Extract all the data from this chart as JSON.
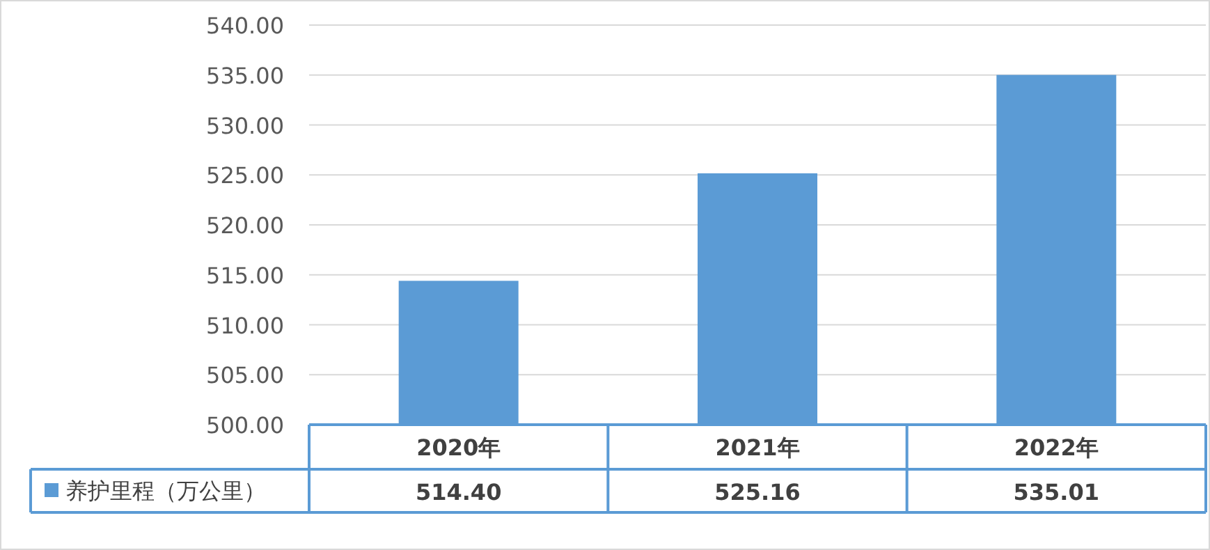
{
  "chart_data": {
    "type": "bar",
    "categories": [
      "2020年",
      "2021年",
      "2022年"
    ],
    "series": [
      {
        "name": "养护里程（万公里）",
        "color": "#5b9bd5",
        "values": [
          514.4,
          525.16,
          535.01
        ],
        "value_labels": [
          "514.40",
          "525.16",
          "535.01"
        ]
      }
    ],
    "ylim": [
      500,
      540
    ],
    "yticks": [
      {
        "value": 500,
        "label": "500.00"
      },
      {
        "value": 505,
        "label": "505.00"
      },
      {
        "value": 510,
        "label": "510.00"
      },
      {
        "value": 515,
        "label": "515.00"
      },
      {
        "value": 520,
        "label": "520.00"
      },
      {
        "value": 525,
        "label": "525.00"
      },
      {
        "value": 530,
        "label": "530.00"
      },
      {
        "value": 535,
        "label": "535.00"
      },
      {
        "value": 540,
        "label": "540.00"
      }
    ],
    "grid": "y",
    "legend": "bottom left"
  }
}
